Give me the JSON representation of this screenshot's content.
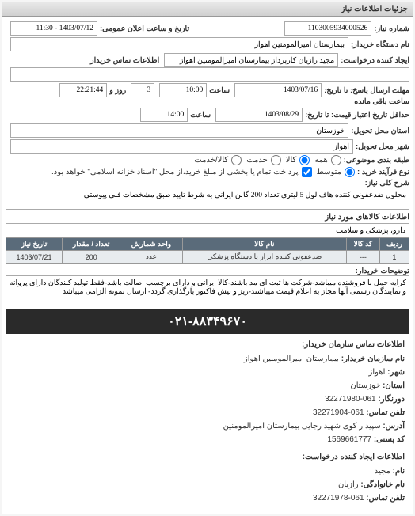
{
  "panel": {
    "title": "جزئیات اطلاعات نیاز"
  },
  "fields": {
    "req_no_label": "شماره نیاز:",
    "req_no": "1103005934000526",
    "pub_dt_label": "تاریخ و ساعت اعلان عمومی:",
    "pub_dt": "1403/07/12 - 11:30",
    "buyer_org_label": "نام دستگاه خریدار:",
    "buyer_org": "بیمارستان امیرالمومنین اهواز",
    "creator_label": "ایجاد کننده درخواست:",
    "creator": "مجید رازیان کارپرداز بیمارستان امیرالمومنین اهواز",
    "buyer_contact_label": "اطلاعات تماس خریدار",
    "buyer_contact": "",
    "deadline1_label": "مهلت ارسال پاسخ: تا تاریخ:",
    "deadline1_date": "1403/07/16",
    "time_label": "ساعت",
    "deadline1_time": "10:00",
    "remaining_days": "3",
    "day_and_label": "روز و",
    "remaining_time": "22:21:44",
    "remaining_label": "ساعت باقی مانده",
    "valid_label": "حداقل تاریخ اعتبار قیمت: تا تاریخ:",
    "valid_date": "1403/08/29",
    "valid_time": "14:00",
    "ship_loc_label": "استان محل تحویل:",
    "ship_loc": "خوزستان",
    "ship_city_label": "شهر محل تحویل:",
    "ship_city": "اهواز",
    "subject_cat_label": "طبقه بندی موضوعی:",
    "r_all": "همه",
    "r_goods": "کالا",
    "r_service": "خدمت",
    "r_goods_service": "کالا/خدمت",
    "proc_type_label": "نوع فرآیند خرید :",
    "r_medium": "متوسط",
    "proc_note": "پرداخت تمام یا بخشی از مبلغ خرید،از محل \"اسناد خزانه اسلامی\" خواهد بود.",
    "need_desc_label": "شرح کلی نیاز:",
    "need_desc": "محلول ضدعفونی کننده هاف لول 5 لیتری تعداد 200 گالن ایرانی به شرط تایید طبق مشخصات فنی پیوستی",
    "goods_info_title": "اطلاعات کالاهای مورد نیاز",
    "goods_cat": "دارو، پزشکی و سلامت",
    "buyer_notes_label": "توضیحات خریدار:",
    "buyer_notes": "کرایه حمل با فروشنده میباشد-شرکت ها ثبت ای مد باشند-کالا ایرانی و دارای برچسب اصالت باشد-فقط تولید کنندگان دارای پروانه و نمایندگان رسمی آنها مجاز به اعلام قیمت میباشند-ریز و پیش فاکتور بارگذاری گردد- ارسال نمونه الزامی میباشد"
  },
  "radios": {
    "subject_selected": "goods",
    "proc_selected": "medium"
  },
  "checkboxes": {
    "proc_note_checked": true
  },
  "goods_table": {
    "cols": [
      "ردیف",
      "کد کالا",
      "نام کالا",
      "واحد شمارش",
      "تعداد / مقدار",
      "تاریخ نیاز"
    ],
    "rows": [
      [
        "1",
        "---",
        "ضدعفونی کننده ابزار یا دستگاه پزشکی",
        "عدد",
        "200",
        "1403/07/21"
      ]
    ]
  },
  "phone_banner": "۰۲۱-۸۸۳۴۹۶۷۰",
  "contacts": {
    "header": "اطلاعات تماس سازمان خریدار:",
    "org_label": "نام سازمان خریدار:",
    "org": "بیمارستان امیرالمومنین اهواز",
    "city_label": "شهر:",
    "city": "اهواز",
    "province_label": "استان:",
    "province": "خوزستان",
    "fax_label": "دورنگار:",
    "fax": "061-32271980",
    "phone_label": "تلفن تماس:",
    "phone": "061-32271904",
    "addr_label": "آدرس:",
    "addr": "سپیدار کوی شهید رجایی بیمارستان امیرالمومنین",
    "post_label": "کد پستی:",
    "post": "1569661777",
    "creator_header": "اطلاعات ایجاد کننده درخواست:",
    "first_label": "نام:",
    "first": "مجید",
    "last_label": "نام خانوادگی:",
    "last": "رازیان",
    "cphone_label": "تلفن تماس:",
    "cphone": "061-32271978"
  }
}
